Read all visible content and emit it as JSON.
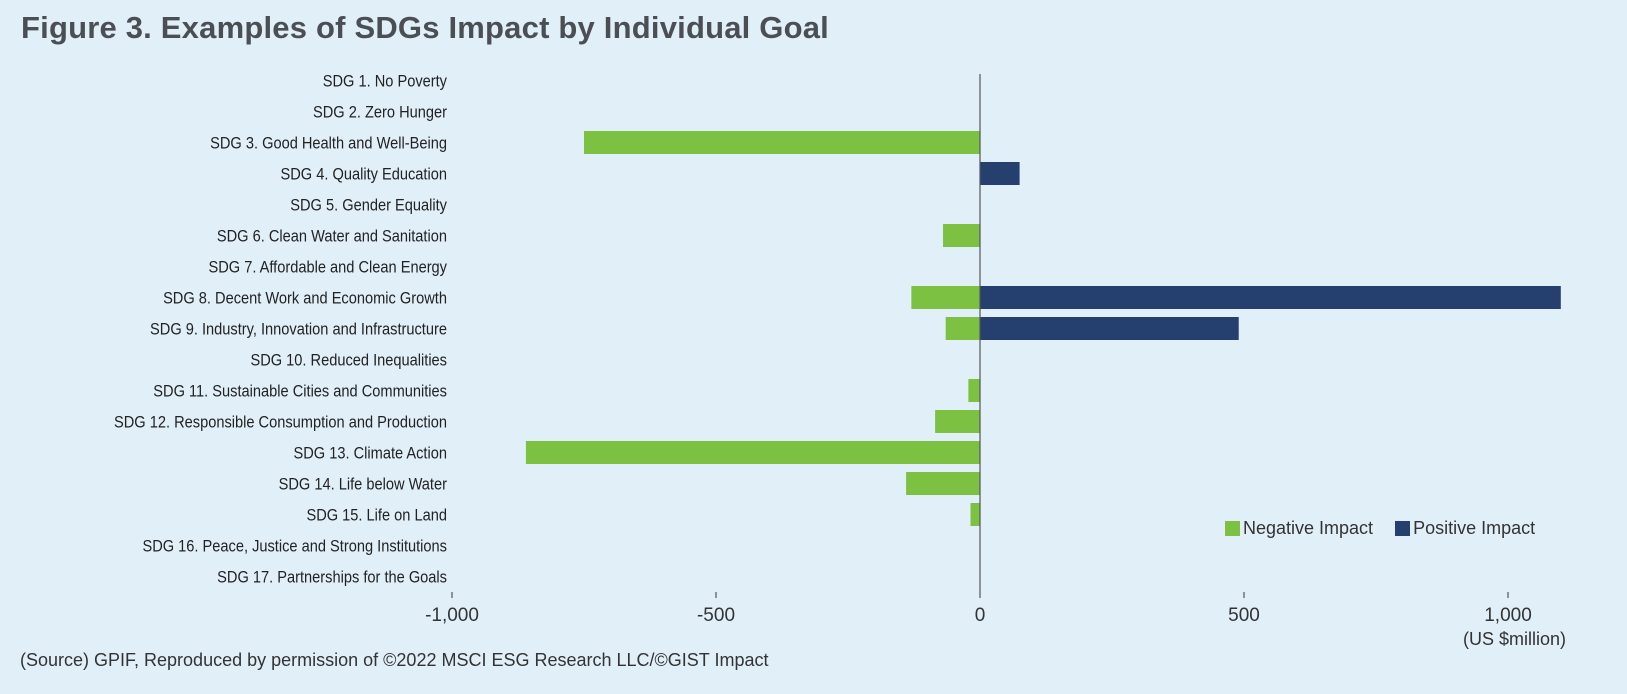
{
  "title": "Figure 3. Examples of SDGs Impact by Individual Goal",
  "source": "(Source) GPIF, Reproduced by permission of ©2022 MSCI ESG Research LLC/©GIST Impact",
  "chart_data": {
    "type": "bar",
    "orientation": "horizontal",
    "title": "Figure 3. Examples of SDGs Impact by Individual Goal",
    "xlabel": "(US $million)",
    "ylabel": "",
    "xlim": [
      -1000,
      1100
    ],
    "xticks": [
      -1000,
      -500,
      0,
      500,
      1000
    ],
    "xtick_labels": [
      "-1,000",
      "-500",
      "0",
      "500",
      "1,000"
    ],
    "grid": false,
    "legend_position": "bottom-right",
    "categories": [
      "SDG 1. No Poverty",
      "SDG 2. Zero Hunger",
      "SDG 3. Good Health and Well-Being",
      "SDG 4. Quality Education",
      "SDG 5. Gender Equality",
      "SDG 6. Clean Water and Sanitation",
      "SDG 7. Affordable and Clean Energy",
      "SDG 8. Decent Work and Economic Growth",
      "SDG 9. Industry, Innovation and Infrastructure",
      "SDG 10. Reduced Inequalities",
      "SDG 11. Sustainable Cities and Communities",
      "SDG 12. Responsible Consumption and Production",
      "SDG 13. Climate Action",
      "SDG 14. Life below Water",
      "SDG 15. Life on Land",
      "SDG 16. Peace, Justice and Strong Institutions",
      "SDG 17. Partnerships for the Goals"
    ],
    "series": [
      {
        "name": "Negative Impact",
        "color": "#7dc142",
        "values": [
          0,
          0,
          -750,
          0,
          0,
          -70,
          0,
          -130,
          -65,
          0,
          -22,
          -85,
          -860,
          -140,
          -18,
          0,
          0
        ]
      },
      {
        "name": "Positive Impact",
        "color": "#253f6e",
        "values": [
          0,
          0,
          0,
          75,
          0,
          0,
          0,
          1100,
          490,
          0,
          0,
          0,
          0,
          0,
          0,
          0,
          0
        ]
      }
    ]
  }
}
